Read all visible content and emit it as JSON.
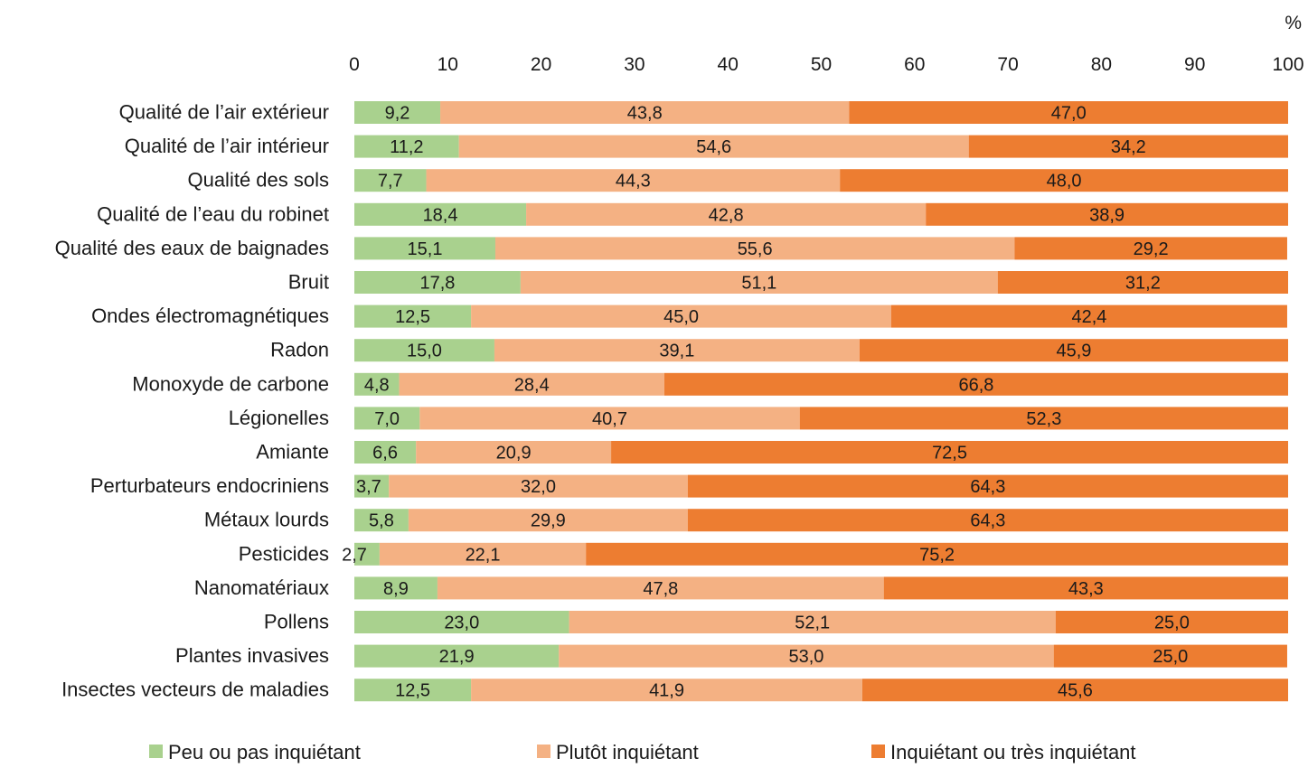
{
  "chart_data": {
    "type": "bar",
    "orientation": "horizontal",
    "stacked": true,
    "unit": "%",
    "xlim": [
      0,
      100
    ],
    "x_ticks": [
      "0",
      "10",
      "20",
      "30",
      "40",
      "50",
      "60",
      "70",
      "80",
      "90",
      "100"
    ],
    "grid": false,
    "legend_position": "bottom",
    "categories": [
      "Qualité de l’air extérieur",
      "Qualité de l’air intérieur",
      "Qualité des sols",
      "Qualité de l’eau du robinet",
      "Qualité des eaux de baignades",
      "Bruit",
      "Ondes électromagnétiques",
      "Radon",
      "Monoxyde de carbone",
      "Légionelles",
      "Amiante",
      "Perturbateurs endocriniens",
      "Métaux lourds",
      "Pesticides",
      "Nanomatériaux",
      "Pollens",
      "Plantes invasives",
      "Insectes vecteurs de maladies"
    ],
    "series": [
      {
        "name": "Peu ou pas inquiétant",
        "color": "#a9d18e",
        "values": [
          9.2,
          11.2,
          7.7,
          18.4,
          15.1,
          17.8,
          12.5,
          15.0,
          4.8,
          7.0,
          6.6,
          3.7,
          5.8,
          2.7,
          8.9,
          23.0,
          21.9,
          12.5
        ],
        "labels": [
          "9,2",
          "11,2",
          "7,7",
          "18,4",
          "15,1",
          "17,8",
          "12,5",
          "15,0",
          "4,8",
          "7,0",
          "6,6",
          "3,7",
          "5,8",
          "2,7",
          "8,9",
          "23,0",
          "21,9",
          "12,5"
        ]
      },
      {
        "name": "Plutôt inquiétant",
        "color": "#f4b183",
        "values": [
          43.8,
          54.6,
          44.3,
          42.8,
          55.6,
          51.1,
          45.0,
          39.1,
          28.4,
          40.7,
          20.9,
          32.0,
          29.9,
          22.1,
          47.8,
          52.1,
          53.0,
          41.9
        ],
        "labels": [
          "43,8",
          "54,6",
          "44,3",
          "42,8",
          "55,6",
          "51,1",
          "45,0",
          "39,1",
          "28,4",
          "40,7",
          "20,9",
          "32,0",
          "29,9",
          "22,1",
          "47,8",
          "52,1",
          "53,0",
          "41,9"
        ]
      },
      {
        "name": "Inquiétant ou très inquiétant",
        "color": "#ed7d31",
        "values": [
          47.0,
          34.2,
          48.0,
          38.9,
          29.2,
          31.2,
          42.4,
          45.9,
          66.8,
          52.3,
          72.5,
          64.3,
          64.3,
          75.2,
          43.3,
          25.0,
          25.0,
          45.6
        ],
        "labels": [
          "47,0",
          "34,2",
          "48,0",
          "38,9",
          "29,2",
          "31,2",
          "42,4",
          "45,9",
          "66,8",
          "52,3",
          "72,5",
          "64,3",
          "64,3",
          "75,2",
          "43,3",
          "25,0",
          "25,0",
          "45,6"
        ]
      }
    ]
  }
}
